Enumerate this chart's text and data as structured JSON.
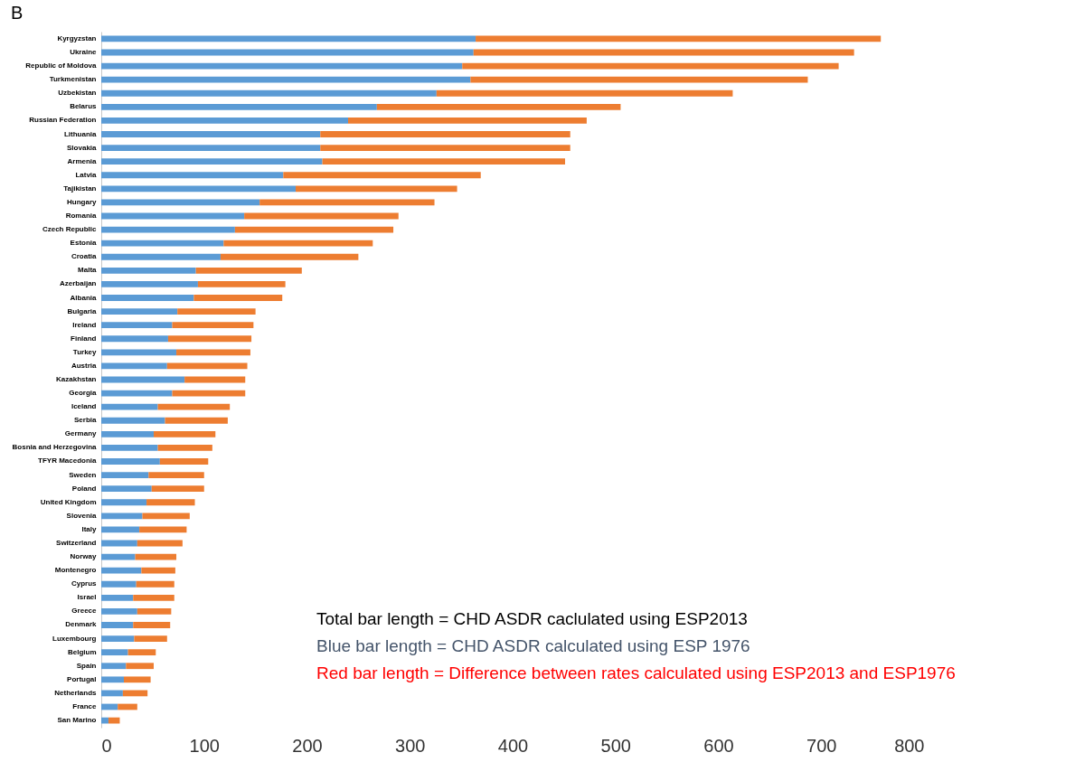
{
  "chart_data": {
    "type": "bar",
    "title": "B",
    "orientation": "horizontal",
    "stacked": true,
    "categories": [
      "Kyrgyzstan",
      "Ukraine",
      "Republic of Moldova",
      "Turkmenistan",
      "Uzbekistan",
      "Belarus",
      "Russian Federation",
      "Lithuania",
      "Slovakia",
      "Armenia",
      "Latvia",
      "Tajikistan",
      "Hungary",
      "Romania",
      "Czech Republic",
      "Estonia",
      "Croatia",
      "Malta",
      "Azerbaijan",
      "Albania",
      "Bulgaria",
      "Ireland",
      "Finland",
      "Turkey",
      "Austria",
      "Kazakhstan",
      "Georgia",
      "Iceland",
      "Serbia",
      "Germany",
      "Bosnia and Herzegovina",
      "TFYR Macedonia",
      "Sweden",
      "Poland",
      "United Kingdom",
      "Slovenia",
      "Italy",
      "Switzerland",
      "Norway",
      "Montenegro",
      "Cyprus",
      "Israel",
      "Greece",
      "Denmark",
      "Luxembourg",
      "Belgium",
      "Spain",
      "Portugal",
      "Netherlands",
      "France",
      "San Marino"
    ],
    "series": [
      {
        "color": "#5b9bd5",
        "values": [
          364,
          362,
          351,
          359,
          326,
          268,
          240,
          213,
          213,
          215,
          177,
          189,
          154,
          139,
          130,
          119,
          116,
          92,
          94,
          90,
          74,
          69,
          65,
          73,
          64,
          81,
          69,
          55,
          62,
          51,
          55,
          57,
          46,
          49,
          44,
          40,
          37,
          35,
          33,
          39,
          34,
          31,
          35,
          31,
          32,
          26,
          24,
          22,
          21,
          16,
          7
        ]
      },
      {
        "color": "#ed7d31",
        "values": [
          394,
          370,
          366,
          328,
          288,
          237,
          232,
          243,
          243,
          236,
          192,
          157,
          170,
          150,
          154,
          145,
          134,
          103,
          85,
          86,
          76,
          79,
          81,
          72,
          78,
          59,
          71,
          70,
          61,
          60,
          53,
          47,
          54,
          51,
          47,
          46,
          46,
          44,
          40,
          33,
          37,
          40,
          33,
          36,
          32,
          27,
          27,
          26,
          24,
          19,
          11
        ]
      }
    ],
    "xlim": [
      0,
      800
    ],
    "xticks": [
      0,
      100,
      200,
      300,
      400,
      500,
      600,
      700,
      800
    ],
    "annotations": [
      "Total bar length = CHD ASDR caclulated using ESP2013",
      "Blue bar length = CHD ASDR calculated using ESP 1976",
      "Red bar length = Difference between rates calculated using ESP2013 and ESP1976"
    ]
  }
}
